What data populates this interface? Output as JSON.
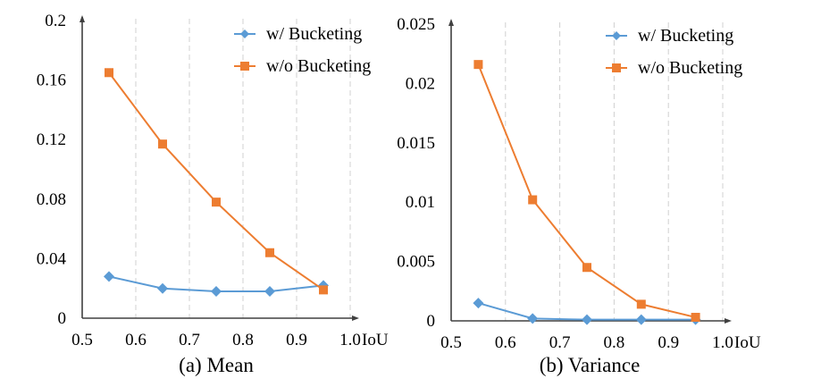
{
  "colors": {
    "with": "#5b9bd5",
    "without": "#ed7d31",
    "axis": "#404040",
    "grid": "#d0d0d0"
  },
  "chart_data": [
    {
      "type": "line",
      "title": "(a) Mean",
      "xlabel": "IoU",
      "ylabel": "",
      "x": [
        0.55,
        0.65,
        0.75,
        0.85,
        0.95
      ],
      "xlim": [
        0.5,
        1.0
      ],
      "ylim": [
        0,
        0.2
      ],
      "xticks": [
        0.5,
        0.6,
        0.7,
        0.8,
        0.9,
        1.0
      ],
      "xtick_labels": [
        "0.5",
        "0.6",
        "0.7",
        "0.8",
        "0.9",
        "1.0"
      ],
      "yticks": [
        0,
        0.04,
        0.08,
        0.12,
        0.16,
        0.2
      ],
      "ytick_labels": [
        "0",
        "0.04",
        "0.08",
        "0.12",
        "0.16",
        "0.2"
      ],
      "grid": "vertical-dashed",
      "legend_position": "top-right",
      "series": [
        {
          "name": "w/ Bucketing",
          "marker": "diamond",
          "values": [
            0.028,
            0.02,
            0.018,
            0.018,
            0.022
          ]
        },
        {
          "name": "w/o Bucketing",
          "marker": "square",
          "values": [
            0.165,
            0.117,
            0.078,
            0.044,
            0.019
          ]
        }
      ]
    },
    {
      "type": "line",
      "title": "(b) Variance",
      "xlabel": "IoU",
      "ylabel": "",
      "x": [
        0.55,
        0.65,
        0.75,
        0.85,
        0.95
      ],
      "xlim": [
        0.5,
        1.0
      ],
      "ylim": [
        0,
        0.025
      ],
      "xticks": [
        0.5,
        0.6,
        0.7,
        0.8,
        0.9,
        1.0
      ],
      "xtick_labels": [
        "0.5",
        "0.6",
        "0.7",
        "0.8",
        "0.9",
        "1.0"
      ],
      "yticks": [
        0,
        0.005,
        0.01,
        0.015,
        0.02,
        0.025
      ],
      "ytick_labels": [
        "0",
        "0.005",
        "0.01",
        "0.015",
        "0.02",
        "0.025"
      ],
      "grid": "vertical-dashed",
      "legend_position": "top-right",
      "series": [
        {
          "name": "w/ Bucketing",
          "marker": "diamond",
          "values": [
            0.0015,
            0.0002,
            0.0001,
            0.0001,
            0.0001
          ]
        },
        {
          "name": "w/o Bucketing",
          "marker": "square",
          "values": [
            0.0216,
            0.0102,
            0.0045,
            0.0014,
            0.0003
          ]
        }
      ]
    }
  ]
}
